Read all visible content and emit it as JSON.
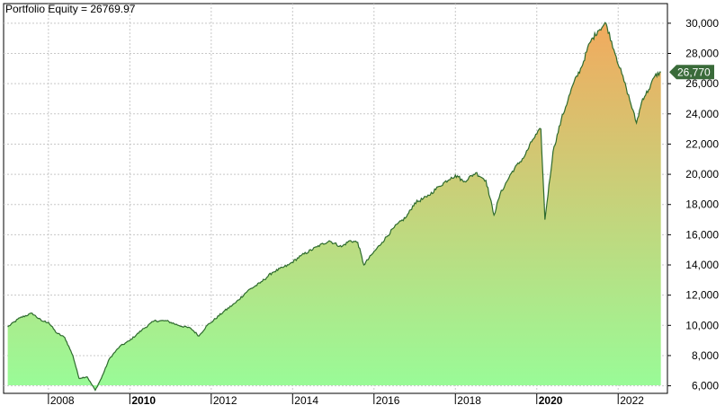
{
  "chart_data": {
    "type": "area",
    "title": "Portfolio Equity = 26769.97",
    "xlabel": "",
    "ylabel": "",
    "ylim": [
      5500,
      31300
    ],
    "xlim": [
      2006.92,
      2023.1
    ],
    "yticks": [
      6000,
      8000,
      10000,
      12000,
      14000,
      16000,
      18000,
      20000,
      22000,
      24000,
      26000,
      28000,
      30000
    ],
    "ytick_labels": [
      "6,000",
      "8,000",
      "10,000",
      "12,000",
      "14,000",
      "16,000",
      "18,000",
      "20,000",
      "22,000",
      "24,000",
      "26,000",
      "28,000",
      "30,000"
    ],
    "xticks": [
      2008,
      2010,
      2012,
      2014,
      2016,
      2018,
      2020,
      2022
    ],
    "xtick_labels": [
      "2008",
      "2010",
      "2012",
      "2014",
      "2016",
      "2018",
      "2020",
      "2022"
    ],
    "bold_xticks": [
      "2010",
      "2020"
    ],
    "grid": true,
    "legend": "none",
    "last_value_label": "26,770",
    "colors": {
      "line": "#2e6b2e",
      "fill_top": "#f2aa5e",
      "fill_bottom": "#98fc98",
      "value_tag": "#3a6b3a",
      "value_tag_text": "#ffffff",
      "grid": "#c8c8c8",
      "axis": "#000000"
    },
    "series": [
      {
        "x": [
          2007.0,
          2007.3,
          2007.6,
          2007.83,
          2008.0,
          2008.2,
          2008.4,
          2008.6,
          2008.75,
          2008.95,
          2009.15,
          2009.3,
          2009.5,
          2009.75,
          2010.0,
          2010.3,
          2010.6,
          2010.9,
          2011.2,
          2011.5,
          2011.7,
          2011.9,
          2012.0,
          2012.3,
          2012.6,
          2012.9,
          2013.2,
          2013.5,
          2013.9,
          2014.2,
          2014.6,
          2014.9,
          2015.2,
          2015.4,
          2015.6,
          2015.75,
          2015.95,
          2016.2,
          2016.5,
          2016.8,
          2017.0,
          2017.3,
          2017.6,
          2017.9,
          2018.05,
          2018.2,
          2018.5,
          2018.75,
          2018.95,
          2019.1,
          2019.4,
          2019.7,
          2019.9,
          2020.1,
          2020.2,
          2020.4,
          2020.6,
          2020.9,
          2021.1,
          2021.3,
          2021.5,
          2021.7,
          2021.95,
          2022.2,
          2022.45,
          2022.6,
          2022.75,
          2022.9,
          2023.05
        ],
        "values": [
          9900,
          10500,
          10800,
          10300,
          10200,
          9500,
          9200,
          8000,
          6500,
          6600,
          5700,
          6500,
          7800,
          8600,
          9000,
          9700,
          10300,
          10300,
          10000,
          9800,
          9300,
          10000,
          10200,
          10900,
          11500,
          12300,
          12800,
          13500,
          14000,
          14600,
          15200,
          15600,
          15200,
          15600,
          15500,
          14000,
          14700,
          15500,
          16500,
          17200,
          18100,
          18500,
          19200,
          19800,
          19900,
          19500,
          20100,
          19600,
          17300,
          18700,
          20200,
          21200,
          22300,
          23000,
          17000,
          21500,
          23600,
          26000,
          27100,
          28700,
          29500,
          30000,
          27800,
          25700,
          23400,
          25000,
          25600,
          26500,
          26770
        ]
      }
    ]
  }
}
